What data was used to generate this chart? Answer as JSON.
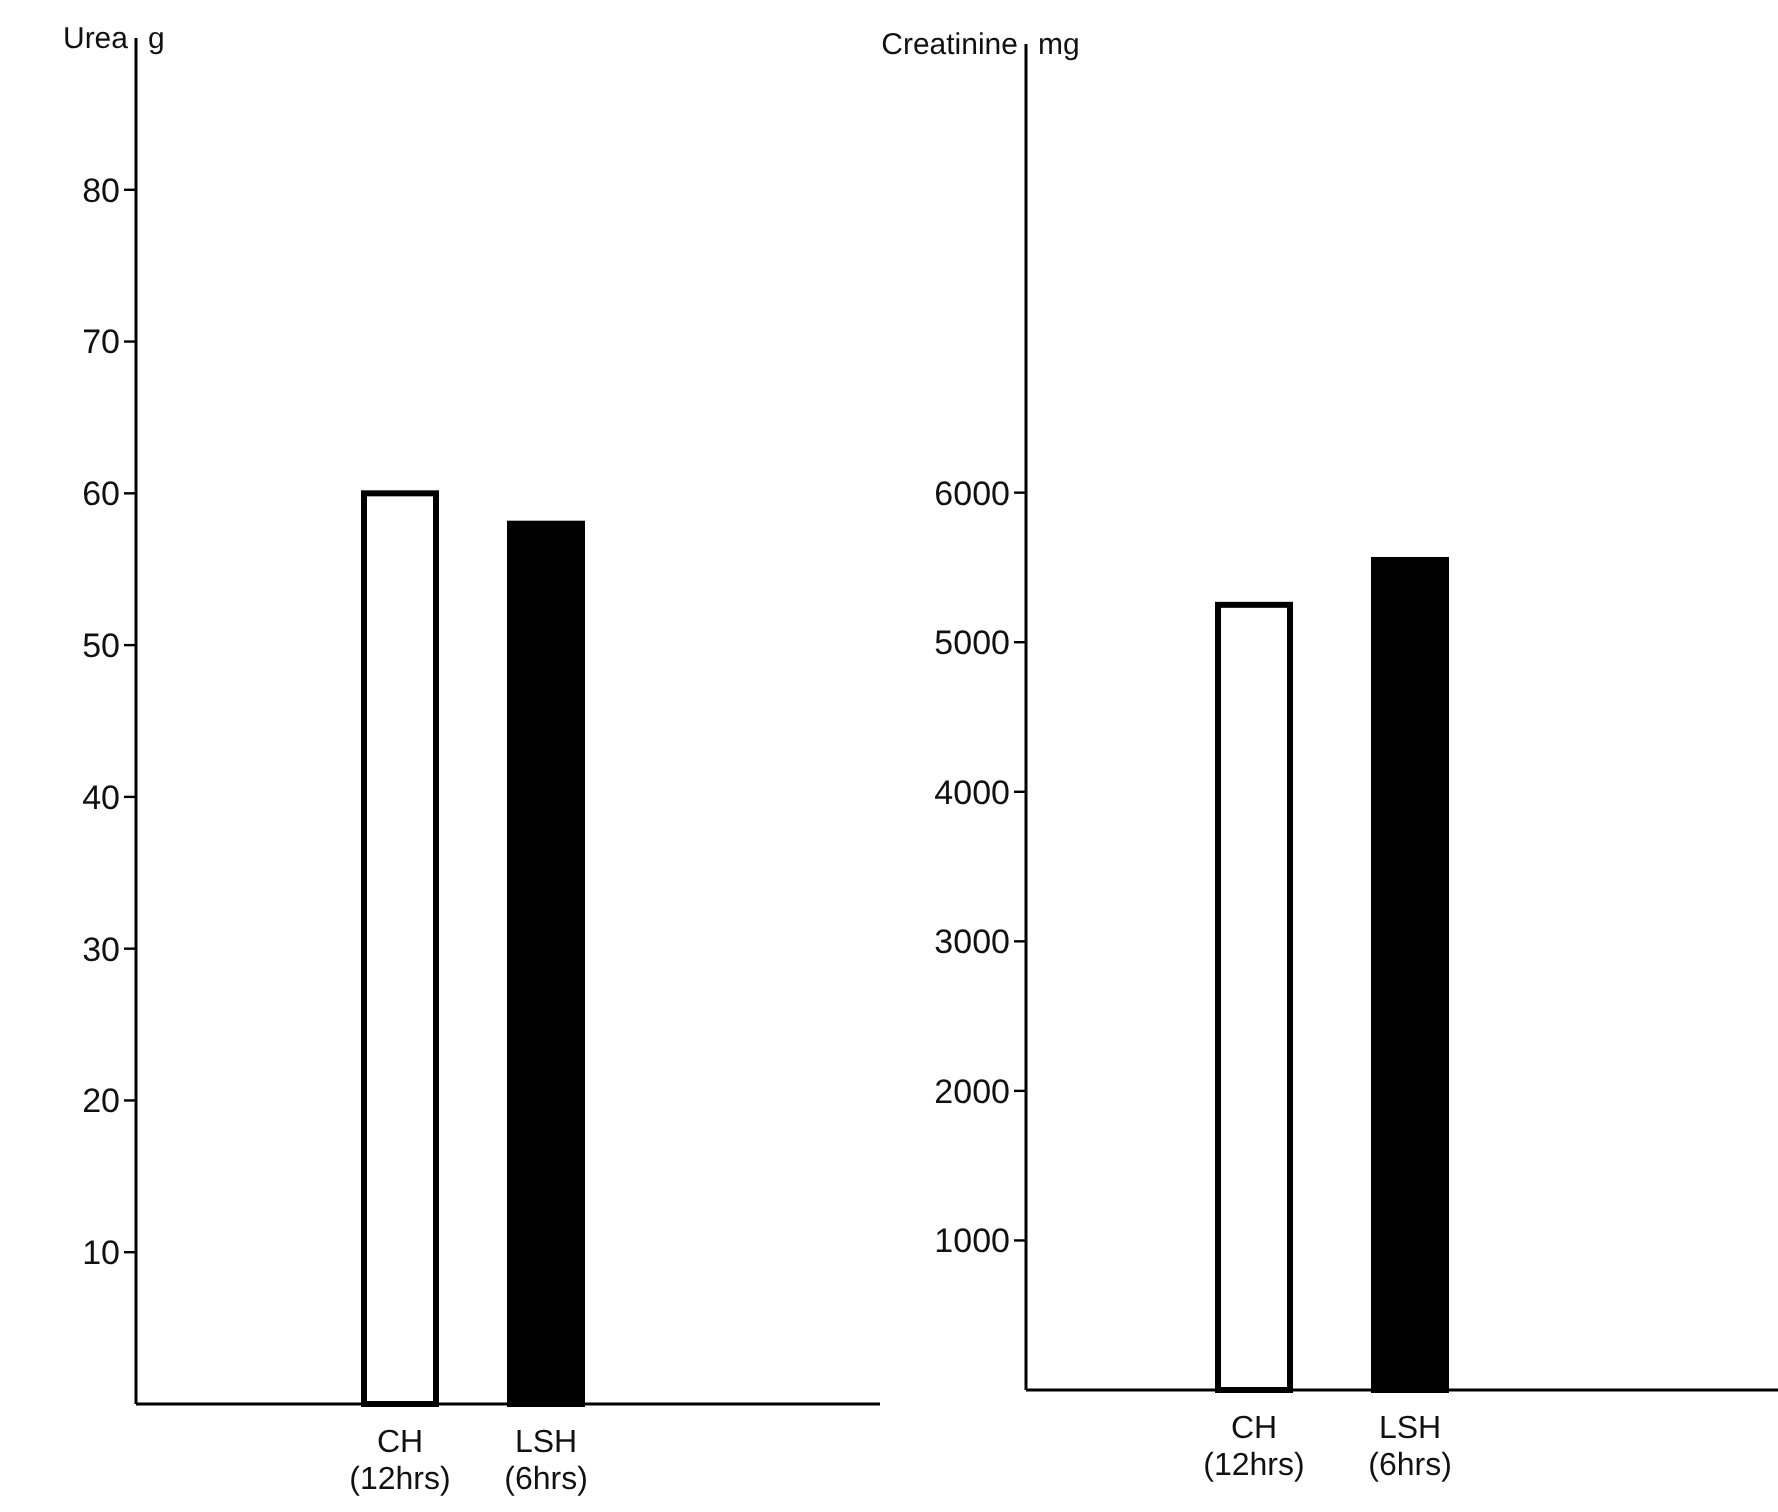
{
  "chart_data": [
    {
      "type": "bar",
      "ylabel": "Urea g",
      "categories": [
        "CH (12hrs)",
        "LSH (6hrs)"
      ],
      "values": [
        60,
        58
      ],
      "colors": [
        "#ffffff",
        "#000000"
      ],
      "ylim": [
        0,
        90
      ],
      "yticks": [
        10,
        20,
        30,
        40,
        50,
        60,
        70,
        80
      ],
      "grid": false
    },
    {
      "type": "bar",
      "ylabel": "Creatinine mg",
      "categories": [
        "CH (12hrs)",
        "LSH (6hrs)"
      ],
      "values": [
        5250,
        5550
      ],
      "colors": [
        "#ffffff",
        "#000000"
      ],
      "ylim": [
        0,
        9000
      ],
      "yticks": [
        1000,
        2000,
        3000,
        4000,
        5000,
        6000
      ],
      "grid": false
    }
  ]
}
